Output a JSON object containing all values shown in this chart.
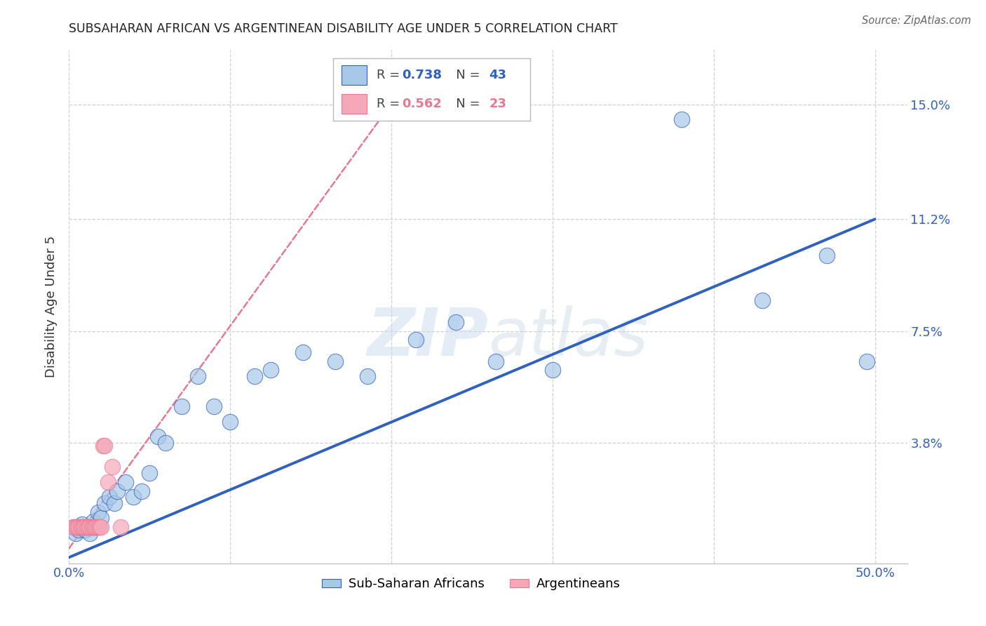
{
  "title": "SUBSAHARAN AFRICAN VS ARGENTINEAN DISABILITY AGE UNDER 5 CORRELATION CHART",
  "source": "Source: ZipAtlas.com",
  "ylabel": "Disability Age Under 5",
  "xlim": [
    0.0,
    0.52
  ],
  "ylim": [
    -0.002,
    0.168
  ],
  "xtick_positions": [
    0.0,
    0.1,
    0.2,
    0.3,
    0.4,
    0.5
  ],
  "xticklabels": [
    "0.0%",
    "",
    "",
    "",
    "",
    "50.0%"
  ],
  "ytick_positions": [
    0.038,
    0.075,
    0.112,
    0.15
  ],
  "ytick_labels": [
    "3.8%",
    "7.5%",
    "11.2%",
    "15.0%"
  ],
  "blue_R": "0.738",
  "blue_N": "43",
  "pink_R": "0.562",
  "pink_N": "23",
  "blue_scatter_x": [
    0.003,
    0.004,
    0.005,
    0.006,
    0.007,
    0.008,
    0.009,
    0.01,
    0.011,
    0.012,
    0.013,
    0.014,
    0.015,
    0.016,
    0.018,
    0.02,
    0.022,
    0.025,
    0.028,
    0.03,
    0.035,
    0.04,
    0.045,
    0.05,
    0.055,
    0.06,
    0.07,
    0.08,
    0.09,
    0.1,
    0.115,
    0.125,
    0.145,
    0.165,
    0.185,
    0.215,
    0.24,
    0.265,
    0.3,
    0.38,
    0.43,
    0.47,
    0.495
  ],
  "blue_scatter_y": [
    0.01,
    0.008,
    0.01,
    0.009,
    0.01,
    0.011,
    0.01,
    0.009,
    0.01,
    0.01,
    0.008,
    0.01,
    0.012,
    0.01,
    0.015,
    0.013,
    0.018,
    0.02,
    0.018,
    0.022,
    0.025,
    0.02,
    0.022,
    0.028,
    0.04,
    0.038,
    0.05,
    0.06,
    0.05,
    0.045,
    0.06,
    0.062,
    0.068,
    0.065,
    0.06,
    0.072,
    0.078,
    0.065,
    0.062,
    0.145,
    0.085,
    0.1,
    0.065
  ],
  "pink_scatter_x": [
    0.003,
    0.004,
    0.005,
    0.006,
    0.007,
    0.008,
    0.009,
    0.01,
    0.011,
    0.012,
    0.013,
    0.014,
    0.015,
    0.016,
    0.017,
    0.018,
    0.019,
    0.02,
    0.021,
    0.022,
    0.024,
    0.027,
    0.032
  ],
  "pink_scatter_y": [
    0.01,
    0.01,
    0.01,
    0.01,
    0.01,
    0.01,
    0.01,
    0.01,
    0.01,
    0.01,
    0.01,
    0.01,
    0.01,
    0.01,
    0.01,
    0.01,
    0.01,
    0.01,
    0.037,
    0.037,
    0.025,
    0.03,
    0.01
  ],
  "blue_line_x": [
    0.0,
    0.5
  ],
  "blue_line_y": [
    0.0,
    0.112
  ],
  "pink_line_x": [
    0.0,
    0.22
  ],
  "pink_line_y": [
    0.003,
    0.165
  ],
  "watermark_zip": "ZIP",
  "watermark_atlas": "atlas",
  "background_color": "#ffffff",
  "blue_color": "#a8c8e8",
  "pink_color": "#f4a8b8",
  "blue_line_color": "#3060c0",
  "pink_line_color": "#e87890",
  "grid_color": "#d0d0d0"
}
